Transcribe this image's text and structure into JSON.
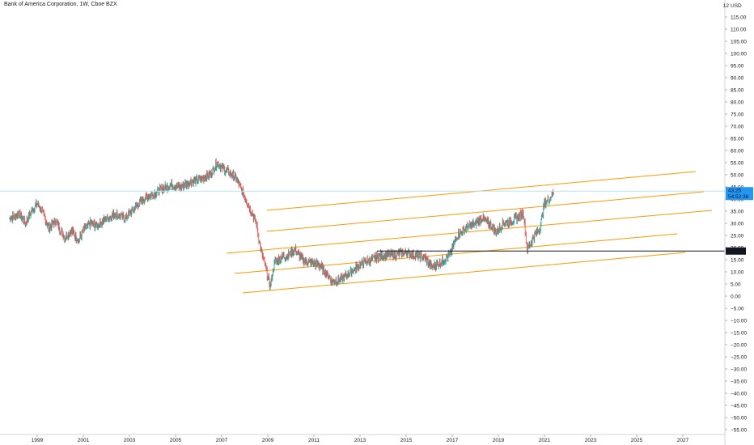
{
  "header": {
    "title": "Bank of America Corporation, 1W, Cboe BZX",
    "currency": "USD"
  },
  "price_tags": {
    "last_price": "43.25",
    "countdown": "54:52:36",
    "level": "18.58"
  },
  "colors": {
    "up": "#26a69a",
    "down": "#ef5350",
    "channel": "#ff9800",
    "level_line": "#131722",
    "last_price_tag": "#2196f3",
    "last_price_line": "#b3e5fc"
  },
  "chart_data": {
    "type": "line",
    "title": "Bank of America Corporation, 1W, Cboe BZX",
    "ylim": [
      -57,
      122
    ],
    "xlim": [
      1997.8,
      2029.0
    ],
    "y_ticks": [
      "115.00",
      "110.00",
      "105.00",
      "100.00",
      "95.00",
      "90.00",
      "85.00",
      "80.00",
      "75.00",
      "70.00",
      "65.00",
      "60.00",
      "55.00",
      "50.00",
      "45.00",
      "40.00",
      "35.00",
      "30.00",
      "25.00",
      "20.00",
      "15.00",
      "10.00",
      "5.00",
      "0.00",
      "−5.00",
      "−10.00",
      "−15.00",
      "−20.00",
      "−25.00",
      "−30.00",
      "−35.00",
      "−40.00",
      "−45.00",
      "−50.00",
      "−55.00"
    ],
    "x_ticks": [
      "1999",
      "2001",
      "2003",
      "2005",
      "2007",
      "2009",
      "2011",
      "2013",
      "2015",
      "2017",
      "2019",
      "2021",
      "2023",
      "2025",
      "2027"
    ],
    "series": [
      {
        "x": [
          1997.8,
          1998.2,
          1998.5,
          1998.8,
          1999.0,
          1999.2,
          1999.5,
          1999.8,
          2000.2,
          2000.5,
          2000.8,
          2001.0,
          2001.3,
          2001.6,
          2002.0,
          2002.4,
          2002.8,
          2003.2,
          2003.6,
          2004.0,
          2004.4,
          2004.8,
          2005.2,
          2005.6,
          2006.0,
          2006.5,
          2006.8,
          2007.0,
          2007.3,
          2007.6,
          2007.9,
          2008.2,
          2008.5,
          2008.7,
          2008.9,
          2009.1,
          2009.3,
          2009.6,
          2009.9,
          2010.2,
          2010.5,
          2010.8,
          2011.2,
          2011.5,
          2011.8,
          2012.2,
          2012.6,
          2013.0,
          2013.5,
          2014.0,
          2014.5,
          2015.0,
          2015.4,
          2015.8,
          2016.1,
          2016.5,
          2016.9,
          2017.2,
          2017.6,
          2018.0,
          2018.3,
          2018.7,
          2018.9,
          2019.2,
          2019.6,
          2019.9,
          2020.1,
          2020.25,
          2020.5,
          2020.8,
          2021.0,
          2021.2,
          2021.4
        ],
        "y": [
          32,
          34,
          30,
          36,
          38,
          35,
          28,
          31,
          24,
          27,
          23,
          27,
          30,
          29,
          32,
          34,
          32,
          36,
          40,
          42,
          44,
          46,
          45,
          47,
          48,
          50,
          55,
          53,
          51,
          49,
          43,
          37,
          30,
          19,
          12,
          4,
          14,
          16,
          17,
          19,
          15,
          14,
          13,
          10,
          6,
          7,
          10,
          13,
          15,
          17,
          17,
          18,
          17,
          16,
          12,
          14,
          17,
          25,
          28,
          30,
          32,
          29,
          26,
          30,
          31,
          33,
          34,
          19,
          24,
          28,
          38,
          40,
          43
        ]
      }
    ],
    "annotations": [
      "43.25",
      "54:52:36",
      "18.58"
    ]
  }
}
